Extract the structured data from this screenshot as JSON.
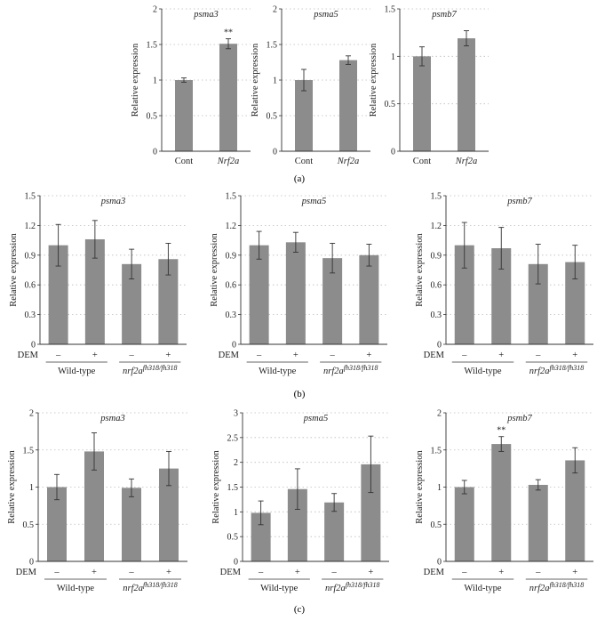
{
  "panel_labels": [
    "(a)",
    "(b)",
    "(c)"
  ],
  "dem_label": "DEM",
  "chart_data": [
    {
      "panel": "(a)",
      "type": "bar",
      "title": "psma3",
      "ylabel": "Relative expression",
      "ylim": [
        0,
        2
      ],
      "yticks": [
        "0",
        "0.5",
        "1",
        "1.5",
        "2"
      ],
      "categories": [
        "Cont",
        "Nrf2a"
      ],
      "italic_categories": [
        false,
        true
      ],
      "values": [
        1.0,
        1.51
      ],
      "errors": [
        0.03,
        0.07
      ],
      "annotations": [
        "",
        "**"
      ],
      "grid": true
    },
    {
      "panel": "(a)",
      "type": "bar",
      "title": "psma5",
      "ylabel": "Relative expression",
      "ylim": [
        0,
        2
      ],
      "yticks": [
        "0",
        "0.5",
        "1",
        "1.5",
        "2"
      ],
      "categories": [
        "Cont",
        "Nrf2a"
      ],
      "italic_categories": [
        false,
        true
      ],
      "values": [
        1.0,
        1.28
      ],
      "errors": [
        0.15,
        0.06
      ],
      "annotations": [
        "",
        ""
      ],
      "grid": true
    },
    {
      "panel": "(a)",
      "type": "bar",
      "title": "psmb7",
      "ylabel": "Relative expression",
      "ylim": [
        0,
        1.5
      ],
      "yticks": [
        "0",
        "0.5",
        "1",
        "1.5"
      ],
      "categories": [
        "Cont",
        "Nrf2a"
      ],
      "italic_categories": [
        false,
        true
      ],
      "values": [
        1.0,
        1.19
      ],
      "errors": [
        0.1,
        0.08
      ],
      "annotations": [
        "",
        ""
      ],
      "grid": true
    },
    {
      "panel": "(b)",
      "type": "bar",
      "title": "psma3",
      "ylabel": "Relative expression",
      "ylim": [
        0,
        1.5
      ],
      "yticks": [
        "0",
        "0.3",
        "0.6",
        "0.9",
        "1.2",
        "1.5"
      ],
      "dem": [
        "–",
        "+",
        "–",
        "+"
      ],
      "groups": [
        {
          "label": "Wild-type"
        },
        {
          "label": "nrf2a",
          "sup": "fh318/fh318"
        }
      ],
      "values": [
        1.0,
        1.06,
        0.81,
        0.86
      ],
      "errors": [
        0.21,
        0.19,
        0.15,
        0.16
      ],
      "annotations": [
        "",
        "",
        "",
        ""
      ],
      "grid": true
    },
    {
      "panel": "(b)",
      "type": "bar",
      "title": "psma5",
      "ylabel": "Relative expression",
      "ylim": [
        0,
        1.5
      ],
      "yticks": [
        "0",
        "0.3",
        "0.6",
        "0.9",
        "1.2",
        "1.5"
      ],
      "dem": [
        "–",
        "+",
        "–",
        "+"
      ],
      "groups": [
        {
          "label": "Wild-type"
        },
        {
          "label": "nrf2a",
          "sup": "fh318/fh318"
        }
      ],
      "values": [
        1.0,
        1.03,
        0.87,
        0.9
      ],
      "errors": [
        0.14,
        0.1,
        0.15,
        0.11
      ],
      "annotations": [
        "",
        "",
        "",
        ""
      ],
      "grid": true
    },
    {
      "panel": "(b)",
      "type": "bar",
      "title": "psmb7",
      "ylabel": "Relative expression",
      "ylim": [
        0,
        1.5
      ],
      "yticks": [
        "0",
        "0.3",
        "0.6",
        "0.9",
        "1.2",
        "1.5"
      ],
      "dem": [
        "–",
        "+",
        "–",
        "+"
      ],
      "groups": [
        {
          "label": "Wild-type"
        },
        {
          "label": "nrf2a",
          "sup": "fh318/fh318"
        }
      ],
      "values": [
        1.0,
        0.97,
        0.81,
        0.83
      ],
      "errors": [
        0.23,
        0.21,
        0.2,
        0.17
      ],
      "annotations": [
        "",
        "",
        "",
        ""
      ],
      "grid": true
    },
    {
      "panel": "(c)",
      "type": "bar",
      "title": "psma3",
      "ylabel": "Relative expression",
      "ylim": [
        0,
        2
      ],
      "yticks": [
        "0",
        "0.5",
        "1",
        "1.5",
        "2"
      ],
      "dem": [
        "–",
        "+",
        "–",
        "+"
      ],
      "groups": [
        {
          "label": "Wild-type"
        },
        {
          "label": "nrf2a",
          "sup": "fh318/fh318"
        }
      ],
      "values": [
        1.0,
        1.48,
        0.99,
        1.25
      ],
      "errors": [
        0.17,
        0.25,
        0.12,
        0.23
      ],
      "annotations": [
        "",
        "",
        "",
        ""
      ],
      "grid": true
    },
    {
      "panel": "(c)",
      "type": "bar",
      "title": "psma5",
      "ylabel": "Relative expression",
      "ylim": [
        0,
        3
      ],
      "yticks": [
        "0",
        "0.5",
        "1",
        "1.5",
        "2",
        "2.5",
        "3"
      ],
      "dem": [
        "–",
        "+",
        "–",
        "+"
      ],
      "groups": [
        {
          "label": "Wild-type"
        },
        {
          "label": "nrf2a",
          "sup": "fh318/fh318"
        }
      ],
      "values": [
        0.98,
        1.46,
        1.19,
        1.96
      ],
      "errors": [
        0.24,
        0.41,
        0.18,
        0.57
      ],
      "annotations": [
        "",
        "",
        "",
        ""
      ],
      "grid": true
    },
    {
      "panel": "(c)",
      "type": "bar",
      "title": "psmb7",
      "ylabel": "Relative expression",
      "ylim": [
        0,
        2
      ],
      "yticks": [
        "0",
        "0.5",
        "1",
        "1.5",
        "2"
      ],
      "dem": [
        "–",
        "+",
        "–",
        "+"
      ],
      "groups": [
        {
          "label": "Wild-type"
        },
        {
          "label": "nrf2a",
          "sup": "fh318/fh318"
        }
      ],
      "values": [
        1.0,
        1.58,
        1.03,
        1.36
      ],
      "errors": [
        0.09,
        0.1,
        0.07,
        0.17
      ],
      "annotations": [
        "",
        "**",
        "",
        ""
      ],
      "grid": true
    }
  ],
  "colors": {
    "bar": "#8c8c8c",
    "axis": "#333333",
    "grid": "#bdbdbd",
    "text": "#222222"
  }
}
